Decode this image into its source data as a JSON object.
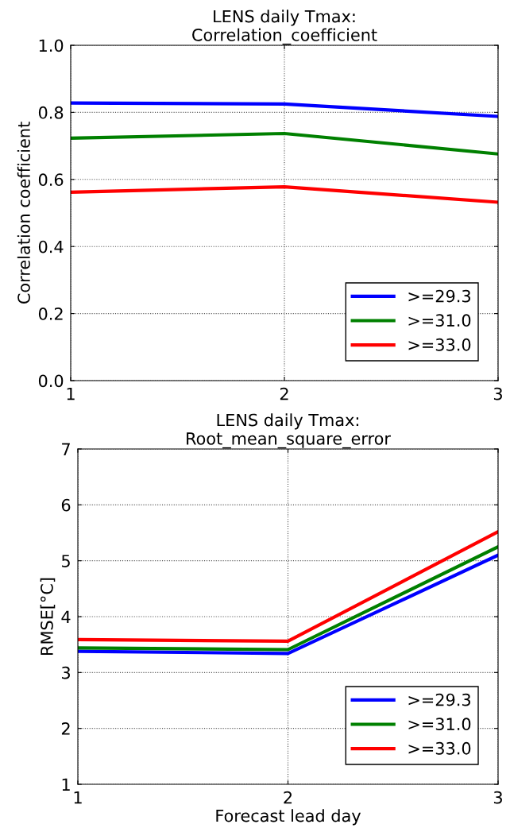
{
  "chart_data": [
    {
      "type": "line",
      "title": "LENS daily Tmax:\nCorrelation_coefficient",
      "ylabel": "Correlation coefficient",
      "x": [
        1,
        2,
        3
      ],
      "xlim": [
        1,
        3
      ],
      "xticks": [
        1,
        2,
        3
      ],
      "ylim": [
        0,
        1
      ],
      "yticks": [
        {
          "value": 0,
          "label": "0.0"
        },
        {
          "value": 0.2,
          "label": "0.2"
        },
        {
          "value": 0.4,
          "label": "0.4"
        },
        {
          "value": 0.6,
          "label": "0.6"
        },
        {
          "value": 0.8,
          "label": "0.8"
        },
        {
          "value": 1,
          "label": "1.0"
        }
      ],
      "grid": true,
      "legend": "bottom right",
      "marker": "none",
      "line_style": "solid",
      "series": [
        {
          "name": ">=29.3",
          "color": "#0000ff",
          "values": [
            0.828,
            0.825,
            0.788
          ]
        },
        {
          "name": ">=31.0",
          "color": "#008000",
          "values": [
            0.723,
            0.737,
            0.676
          ]
        },
        {
          "name": ">=33.0",
          "color": "#ff0000",
          "values": [
            0.562,
            0.578,
            0.532
          ]
        }
      ]
    },
    {
      "type": "line",
      "title": "LENS daily Tmax:\nRoot_mean_square_error",
      "xlabel": "Forecast lead day",
      "ylabel": "RMSE[°C]",
      "x": [
        1,
        2,
        3
      ],
      "xlim": [
        1,
        3
      ],
      "xticks": [
        1,
        2,
        3
      ],
      "ylim": [
        1,
        7
      ],
      "yticks": [
        1,
        2,
        3,
        4,
        5,
        6,
        7
      ],
      "grid": true,
      "legend": "bottom right",
      "marker": "none",
      "line_style": "solid",
      "series": [
        {
          "name": ">=29.3",
          "color": "#0000ff",
          "values": [
            3.38,
            3.34,
            5.1
          ]
        },
        {
          "name": ">=31.0",
          "color": "#008000",
          "values": [
            3.44,
            3.41,
            5.25
          ]
        },
        {
          "name": ">=33.0",
          "color": "#ff0000",
          "values": [
            3.59,
            3.56,
            5.52
          ]
        }
      ]
    }
  ]
}
